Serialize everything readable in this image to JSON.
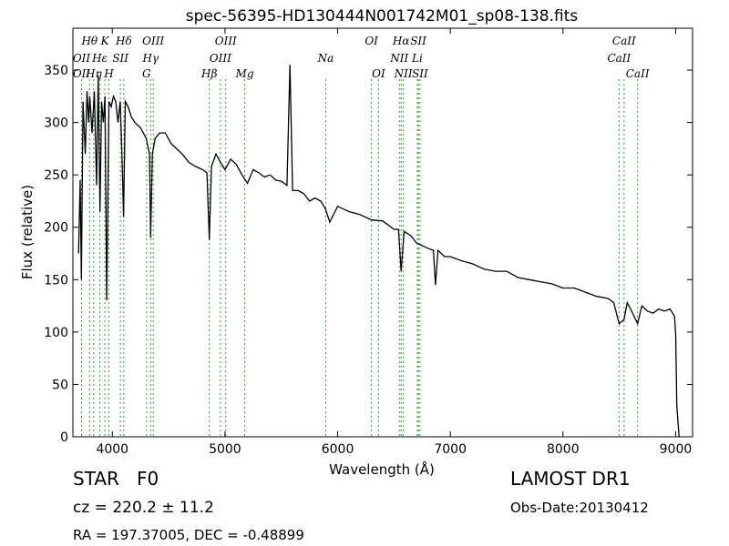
{
  "chart_data": {
    "type": "line",
    "title": "spec-56395-HD130444N001742M01_sp08-138.fits",
    "xlabel": "Wavelength (Å)",
    "ylabel": "Flux (relative)",
    "xlim": [
      3650,
      9150
    ],
    "ylim": [
      0,
      390
    ],
    "xticks": [
      4000,
      5000,
      6000,
      7000,
      8000,
      9000
    ],
    "yticks": [
      0,
      50,
      100,
      150,
      200,
      250,
      300,
      350
    ],
    "grid": false,
    "line_color": "#000000",
    "spectral_line_color": "#2ca02c",
    "series": [
      {
        "x": [
          3700,
          3715,
          3725,
          3740,
          3760,
          3775,
          3790,
          3800,
          3820,
          3840,
          3860,
          3875,
          3890,
          3905,
          3920,
          3935,
          3950,
          3970,
          3990,
          4010,
          4030,
          4050,
          4070,
          4085,
          4100,
          4115,
          4140,
          4170,
          4200,
          4250,
          4300,
          4330,
          4340,
          4355,
          4380,
          4420,
          4470,
          4520,
          4570,
          4620,
          4680,
          4740,
          4800,
          4840,
          4861,
          4880,
          4920,
          4960,
          5000,
          5050,
          5100,
          5150,
          5200,
          5250,
          5300,
          5350,
          5400,
          5450,
          5500,
          5550,
          5577,
          5600,
          5650,
          5700,
          5750,
          5800,
          5850,
          5890,
          5930,
          6000,
          6100,
          6200,
          6300,
          6400,
          6500,
          6540,
          6563,
          6590,
          6650,
          6700,
          6800,
          6850,
          6868,
          6890,
          6950,
          7000,
          7100,
          7200,
          7300,
          7400,
          7500,
          7600,
          7700,
          7800,
          7900,
          8000,
          8100,
          8200,
          8300,
          8400,
          8450,
          8498,
          8542,
          8570,
          8600,
          8662,
          8700,
          8750,
          8800,
          8850,
          8900,
          8950,
          8990,
          9000,
          9010,
          9030
        ],
        "y": [
          175,
          245,
          150,
          320,
          270,
          330,
          300,
          325,
          290,
          330,
          240,
          345,
          215,
          320,
          300,
          325,
          130,
          320,
          315,
          325,
          320,
          300,
          320,
          270,
          210,
          320,
          315,
          305,
          300,
          295,
          285,
          270,
          190,
          270,
          285,
          290,
          290,
          280,
          275,
          270,
          262,
          258,
          255,
          252,
          188,
          258,
          270,
          262,
          255,
          265,
          260,
          250,
          242,
          255,
          252,
          248,
          250,
          245,
          244,
          240,
          355,
          235,
          235,
          232,
          225,
          228,
          225,
          218,
          205,
          220,
          215,
          212,
          207,
          206,
          198,
          198,
          158,
          196,
          192,
          185,
          180,
          178,
          145,
          178,
          172,
          172,
          168,
          165,
          160,
          158,
          158,
          152,
          150,
          148,
          146,
          142,
          142,
          138,
          134,
          132,
          128,
          108,
          112,
          128,
          122,
          108,
          125,
          120,
          118,
          122,
          120,
          122,
          115,
          98,
          30,
          0
        ]
      }
    ],
    "spectral_lines": [
      {
        "wavelength": 3727,
        "label": "OII",
        "row": 1
      },
      {
        "wavelength": 3727,
        "label": "OII",
        "row": 2
      },
      {
        "wavelength": 3798,
        "label": "Hθ",
        "row": 0
      },
      {
        "wavelength": 3835,
        "label": "Hη",
        "row": 2
      },
      {
        "wavelength": 3889,
        "label": "Hε",
        "row": 1
      },
      {
        "wavelength": 3934,
        "label": "K",
        "row": 0
      },
      {
        "wavelength": 3969,
        "label": "H",
        "row": 2
      },
      {
        "wavelength": 4072,
        "label": "SII",
        "row": 1
      },
      {
        "wavelength": 4102,
        "label": "Hδ",
        "row": 0
      },
      {
        "wavelength": 4304,
        "label": "G",
        "row": 2
      },
      {
        "wavelength": 4340,
        "label": "Hγ",
        "row": 1
      },
      {
        "wavelength": 4363,
        "label": "OIII",
        "row": 0
      },
      {
        "wavelength": 4861,
        "label": "Hβ",
        "row": 2
      },
      {
        "wavelength": 4959,
        "label": "OIII",
        "row": 1
      },
      {
        "wavelength": 5007,
        "label": "OIII",
        "row": 0
      },
      {
        "wavelength": 5175,
        "label": "Mg",
        "row": 2
      },
      {
        "wavelength": 5894,
        "label": "Na",
        "row": 1
      },
      {
        "wavelength": 6300,
        "label": "OI",
        "row": 0
      },
      {
        "wavelength": 6363,
        "label": "OI",
        "row": 2
      },
      {
        "wavelength": 6548,
        "label": "NII",
        "row": 1
      },
      {
        "wavelength": 6563,
        "label": "Hα",
        "row": 0
      },
      {
        "wavelength": 6583,
        "label": "NII",
        "row": 2
      },
      {
        "wavelength": 6707,
        "label": "Li",
        "row": 1
      },
      {
        "wavelength": 6716,
        "label": "SII",
        "row": 0
      },
      {
        "wavelength": 6731,
        "label": "SII",
        "row": 2
      },
      {
        "wavelength": 8498,
        "label": "CaII",
        "row": 1
      },
      {
        "wavelength": 8542,
        "label": "CaII",
        "row": 0
      },
      {
        "wavelength": 8662,
        "label": "CaII",
        "row": 2
      }
    ]
  },
  "info": {
    "class_label": "STAR",
    "subclass_label": "F0",
    "survey": "LAMOST DR1",
    "cz": "cz = 220.2 ± 11.2",
    "obs_date": "Obs-Date:20130412",
    "coords": "RA = 197.37005, DEC = -0.48899"
  }
}
